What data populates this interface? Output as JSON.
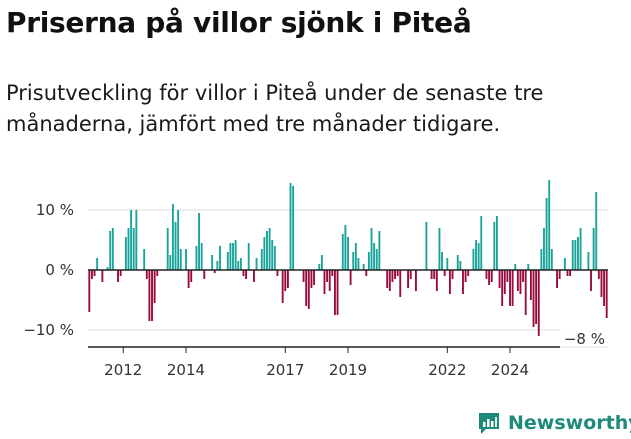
{
  "title": "Priserna på villor sjönk i Piteå",
  "subtitle": "Prisutveckling för villor i Piteå under de senaste tre månaderna, jämfört med tre månader tidigare.",
  "brand": {
    "name": "Newsworthy",
    "color": "#1f8a7a"
  },
  "colors": {
    "positive": "#1aa39a",
    "negative": "#990a3f",
    "grid": "#dddddd",
    "axis": "#222222"
  },
  "chart_data": {
    "type": "bar",
    "title": "Priserna på villor sjönk i Piteå",
    "xlabel": "",
    "ylabel": "",
    "ylim": [
      -12.5,
      15
    ],
    "unit": "%",
    "yticks": [
      {
        "value": 10,
        "label": "10 %"
      },
      {
        "value": 0,
        "label": "0 %"
      },
      {
        "value": -10,
        "label": "−10 %"
      }
    ],
    "xtick_labels": [
      {
        "pos": 13,
        "label": "2012"
      },
      {
        "pos": 37,
        "label": "2014"
      },
      {
        "pos": 75,
        "label": "2017"
      },
      {
        "pos": 99,
        "label": "2019"
      },
      {
        "pos": 137,
        "label": "2022"
      },
      {
        "pos": 161,
        "label": "2024"
      }
    ],
    "last_value_label": "−8 %",
    "values": [
      -7,
      -1.5,
      -1,
      2,
      0,
      -2,
      0,
      0.5,
      6.5,
      7,
      0,
      -2,
      -1,
      0,
      5.5,
      7,
      10,
      7,
      10,
      0,
      0,
      3.5,
      -1.5,
      -8.5,
      -8.5,
      -5.5,
      -1,
      0,
      0,
      0,
      7,
      2.5,
      11,
      8,
      10,
      3.5,
      0,
      3.5,
      -3,
      -2,
      0,
      4,
      9.5,
      4.5,
      -1.5,
      0,
      0,
      2.5,
      -0.5,
      1.5,
      4,
      0,
      0,
      3,
      4.5,
      4.5,
      5,
      1.5,
      2,
      -1,
      -1.5,
      4.5,
      0,
      -2,
      2,
      0,
      3.5,
      5.5,
      6.5,
      7,
      5,
      4,
      -1,
      0,
      -5.5,
      -3.5,
      -3,
      14.5,
      14,
      0,
      0,
      0,
      -2,
      -6,
      -6.5,
      -3,
      -2.5,
      0,
      1,
      2.5,
      -4,
      -2,
      -3.5,
      -1,
      -7.5,
      -7.5,
      0,
      6,
      7.5,
      5.5,
      -2.5,
      3,
      4.5,
      2,
      0,
      1,
      -1,
      3,
      7,
      4.5,
      3.5,
      6.5,
      0,
      0,
      -3,
      -3.5,
      -2,
      -1.5,
      -1,
      -4.5,
      0,
      0,
      -3,
      -1.5,
      0,
      -3.5,
      0,
      0,
      0,
      8,
      0,
      -1.5,
      -1.5,
      -3.5,
      7,
      3,
      -1,
      2,
      -4,
      -1.5,
      0,
      2.5,
      1.5,
      -4,
      -2,
      -1,
      0,
      3.5,
      5,
      4.5,
      9,
      0,
      -1.5,
      -2.5,
      -2,
      8,
      9,
      -3,
      -6,
      -4,
      -2,
      -6,
      -6,
      1,
      -3.5,
      -4,
      -2,
      -7.5,
      1,
      -5,
      -9.5,
      -9,
      -11,
      3.5,
      7,
      12,
      15,
      3.5,
      0,
      -3,
      -1.5,
      0,
      2,
      -1,
      -1,
      5,
      5,
      5.5,
      7,
      0,
      0,
      3,
      -3.5,
      7,
      13,
      -1.5,
      -4.5,
      -6,
      -8
    ]
  }
}
